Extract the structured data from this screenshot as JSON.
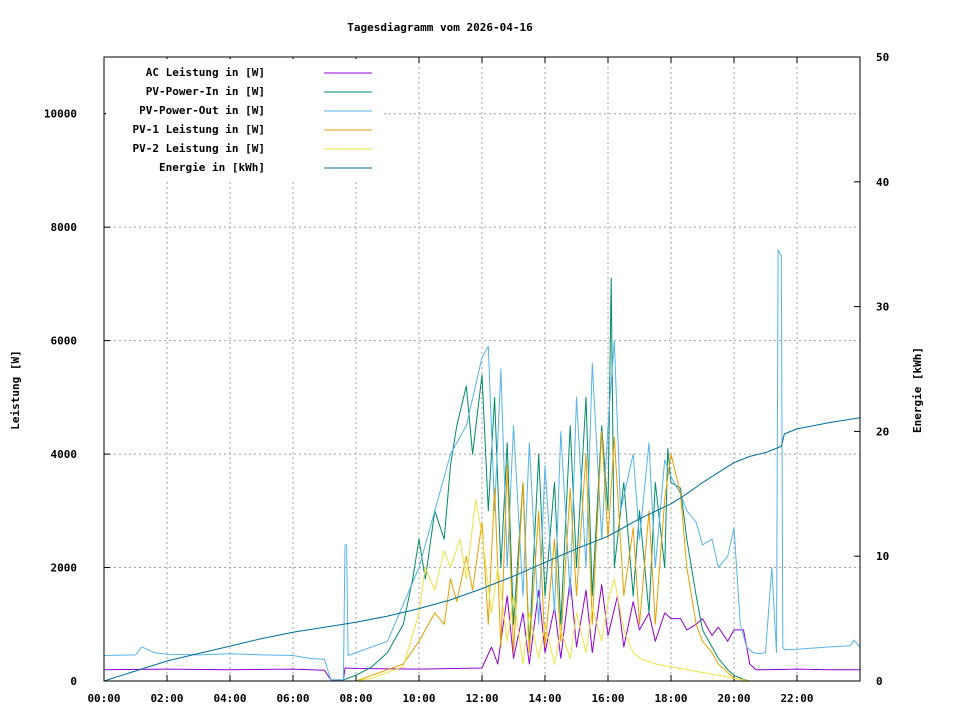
{
  "chart_data": {
    "type": "line",
    "title": "Tagesdiagramm vom 2026-04-16",
    "ylabel": "Leistung [W]",
    "y2label": "Energie [kWh]",
    "xlabel": "",
    "xlim": [
      0,
      24
    ],
    "ylim": [
      0,
      11000
    ],
    "y2lim": [
      0,
      50
    ],
    "x_ticks": [
      0,
      2,
      4,
      6,
      8,
      10,
      12,
      14,
      16,
      18,
      20,
      22
    ],
    "x_tick_labels": [
      "00:00",
      "02:00",
      "04:00",
      "06:00",
      "08:00",
      "10:00",
      "12:00",
      "14:00",
      "16:00",
      "18:00",
      "20:00",
      "22:00"
    ],
    "y_ticks": [
      0,
      2000,
      4000,
      6000,
      8000,
      10000
    ],
    "y_tick_labels": [
      "0",
      "2000",
      "4000",
      "6000",
      "8000",
      "10000"
    ],
    "y2_ticks": [
      0,
      10,
      20,
      30,
      40,
      50
    ],
    "y2_tick_labels": [
      "0",
      "10",
      "20",
      "30",
      "40",
      "50"
    ],
    "grid": true,
    "legend_position": "top-left",
    "series": [
      {
        "name": "AC Leistung in [W]",
        "color": "#9400d3",
        "axis": "left",
        "x": [
          0,
          2,
          4,
          6,
          7.0,
          7.2,
          7.6,
          7.65,
          8,
          10,
          12,
          12.3,
          12.5,
          12.8,
          13,
          13.3,
          13.5,
          13.8,
          14,
          14.3,
          14.5,
          14.8,
          15,
          15.3,
          15.5,
          15.8,
          16,
          16.3,
          16.5,
          16.8,
          17,
          17.3,
          17.5,
          17.8,
          18,
          18.3,
          18.5,
          18.8,
          19,
          19.3,
          19.5,
          19.8,
          20,
          20.3,
          20.5,
          20.7,
          21,
          22,
          23,
          24
        ],
        "y": [
          200,
          210,
          200,
          210,
          190,
          20,
          20,
          230,
          220,
          210,
          230,
          600,
          300,
          1500,
          400,
          1200,
          300,
          1600,
          500,
          1300,
          400,
          1800,
          600,
          1600,
          500,
          1700,
          800,
          1500,
          600,
          1400,
          900,
          1200,
          700,
          1200,
          1100,
          1100,
          900,
          1000,
          1100,
          800,
          950,
          700,
          900,
          900,
          300,
          200,
          200,
          210,
          200,
          200
        ]
      },
      {
        "name": "PV-Power-In in [W]",
        "color": "#008b6b",
        "axis": "left",
        "x": [
          0,
          7.5,
          8,
          8.5,
          9,
          9.5,
          9.8,
          10,
          10.2,
          10.5,
          10.8,
          11,
          11.2,
          11.5,
          11.7,
          12,
          12.2,
          12.4,
          12.6,
          12.8,
          13,
          13.3,
          13.5,
          13.8,
          14,
          14.3,
          14.5,
          14.8,
          15,
          15.3,
          15.5,
          15.8,
          16,
          16.1,
          16.2,
          16.5,
          16.8,
          17,
          17.3,
          17.5,
          17.8,
          17.9,
          18,
          18.3,
          18.5,
          18.8,
          19,
          19.3,
          19.5,
          19.8,
          20,
          20.3,
          20.5,
          24
        ],
        "y": [
          0,
          0,
          100,
          250,
          500,
          1000,
          1800,
          2500,
          1800,
          3000,
          2500,
          3800,
          4500,
          5200,
          4000,
          5400,
          3000,
          5000,
          2000,
          4200,
          1000,
          3500,
          600,
          4000,
          1500,
          3500,
          1000,
          4500,
          2000,
          5000,
          1500,
          4500,
          3000,
          7100,
          2000,
          3500,
          1500,
          3000,
          1200,
          3500,
          2000,
          4100,
          3500,
          3400,
          2500,
          1500,
          900,
          600,
          400,
          200,
          100,
          30,
          0,
          0
        ]
      },
      {
        "name": "PV-Power-Out in [W]",
        "color": "#56b4e9",
        "axis": "left",
        "x": [
          0,
          1,
          1.2,
          1.6,
          2,
          3,
          4,
          5,
          6,
          6.5,
          7.0,
          7.2,
          7.6,
          7.65,
          7.7,
          7.75,
          8,
          9,
          10,
          11,
          11.5,
          12,
          12.2,
          12.4,
          12.6,
          12.8,
          13,
          13.3,
          13.5,
          13.8,
          14,
          14.3,
          14.5,
          14.8,
          15,
          15.3,
          15.5,
          15.8,
          16,
          16.2,
          16.4,
          16.8,
          17,
          17.3,
          17.5,
          17.8,
          18,
          18.3,
          18.5,
          18.8,
          19,
          19.3,
          19.5,
          19.8,
          20,
          20.2,
          20.4,
          20.6,
          20.8,
          21,
          21.2,
          21.35,
          21.4,
          21.5,
          21.55,
          21.6,
          22,
          22.5,
          23,
          23.7,
          23.8,
          24
        ],
        "y": [
          450,
          460,
          600,
          500,
          470,
          460,
          480,
          460,
          450,
          400,
          380,
          20,
          20,
          2400,
          2400,
          450,
          500,
          700,
          2000,
          4000,
          4500,
          5700,
          5900,
          3000,
          5500,
          2000,
          4500,
          1500,
          4200,
          1000,
          3800,
          1200,
          4400,
          1500,
          5000,
          2000,
          5600,
          2500,
          4500,
          6000,
          3000,
          4000,
          2500,
          4200,
          2000,
          3900,
          3600,
          3300,
          3000,
          2800,
          2400,
          2500,
          2000,
          2200,
          2700,
          1000,
          600,
          500,
          480,
          500,
          2000,
          500,
          7600,
          7500,
          600,
          550,
          560,
          580,
          600,
          620,
          720,
          600
        ]
      },
      {
        "name": "PV-1 Leistung in [W]",
        "color": "#e69f00",
        "axis": "left",
        "x": [
          0,
          8,
          8.5,
          9,
          9.5,
          10,
          10.2,
          10.5,
          10.8,
          11,
          11.2,
          11.5,
          11.7,
          12,
          12.2,
          12.4,
          12.6,
          12.8,
          13,
          13.3,
          13.5,
          13.8,
          14,
          14.3,
          14.5,
          14.8,
          15,
          15.3,
          15.5,
          15.8,
          16,
          16.2,
          16.5,
          16.8,
          17,
          17.3,
          17.5,
          17.8,
          18,
          18.3,
          18.5,
          18.8,
          19,
          19.3,
          19.5,
          19.8,
          20,
          20.5,
          24
        ],
        "y": [
          0,
          0,
          100,
          200,
          300,
          700,
          900,
          1200,
          1000,
          1800,
          1400,
          2200,
          1600,
          2800,
          1000,
          3400,
          600,
          3800,
          500,
          3500,
          500,
          3000,
          600,
          2500,
          700,
          3400,
          1500,
          4000,
          1000,
          4400,
          2500,
          4300,
          1500,
          2700,
          1000,
          3000,
          1000,
          3200,
          4000,
          3300,
          2000,
          1000,
          700,
          500,
          300,
          150,
          50,
          0,
          0
        ]
      },
      {
        "name": "PV-2 Leistung in [W]",
        "color": "#f0e442",
        "axis": "left",
        "x": [
          0,
          8,
          8.5,
          9,
          9.5,
          10,
          10.2,
          10.5,
          10.8,
          11,
          11.3,
          11.5,
          11.8,
          12,
          12.3,
          12.5,
          12.8,
          13,
          13.3,
          13.5,
          13.8,
          14,
          14.3,
          14.5,
          14.8,
          15,
          15.3,
          15.5,
          15.8,
          16,
          16.2,
          16.5,
          16.8,
          17,
          17.5,
          18,
          18.5,
          19,
          19.5,
          20,
          20.5,
          24
        ],
        "y": [
          0,
          0,
          50,
          150,
          250,
          1200,
          2000,
          1600,
          2300,
          2000,
          2500,
          1800,
          3200,
          2600,
          1200,
          2000,
          700,
          1500,
          300,
          1200,
          400,
          1000,
          300,
          900,
          400,
          1200,
          500,
          1300,
          700,
          1400,
          1800,
          900,
          500,
          400,
          300,
          250,
          200,
          150,
          100,
          50,
          0,
          0
        ]
      },
      {
        "name": "Energie in [kWh]",
        "color": "#006e9b",
        "axis": "right",
        "x": [
          0,
          1,
          2,
          3,
          4,
          5,
          6,
          7,
          8,
          9,
          10,
          11,
          12,
          13,
          14,
          15,
          16,
          16.5,
          17,
          17.5,
          18,
          18.5,
          19,
          19.5,
          20,
          20.5,
          21,
          21.5,
          21.6,
          22,
          23,
          24
        ],
        "y": [
          0,
          0.8,
          1.6,
          2.2,
          2.8,
          3.4,
          3.9,
          4.3,
          4.7,
          5.2,
          5.8,
          6.5,
          7.4,
          8.4,
          9.5,
          10.6,
          11.6,
          12.3,
          13.0,
          13.6,
          14.2,
          15.0,
          15.9,
          16.7,
          17.5,
          18.0,
          18.3,
          18.8,
          19.8,
          20.2,
          20.7,
          21.1
        ]
      }
    ]
  }
}
